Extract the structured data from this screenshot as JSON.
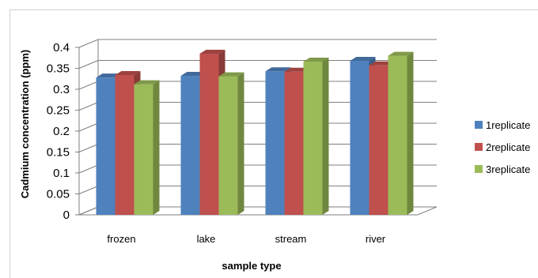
{
  "chart_data": {
    "type": "bar",
    "title": "",
    "xlabel": "sample type",
    "ylabel": "Cadmium concentration (ppm)",
    "categories": [
      "frozen",
      "lake",
      "stream",
      "river"
    ],
    "yticks": [
      "0",
      "0.05",
      "0.1",
      "0.15",
      "0.2",
      "0.25",
      "0.3",
      "0.35",
      "0.4"
    ],
    "ylim": [
      0,
      0.4
    ],
    "grid": true,
    "legend_position": "right",
    "series": [
      {
        "name": "1replicate",
        "color": "#4F81BD",
        "values": [
          0.328,
          0.332,
          0.343,
          0.368
        ]
      },
      {
        "name": "2replicate",
        "color": "#C0504D",
        "values": [
          0.334,
          0.385,
          0.342,
          0.357
        ]
      },
      {
        "name": "3replicate",
        "color": "#9BBB59",
        "values": [
          0.312,
          0.331,
          0.366,
          0.38
        ]
      }
    ]
  }
}
